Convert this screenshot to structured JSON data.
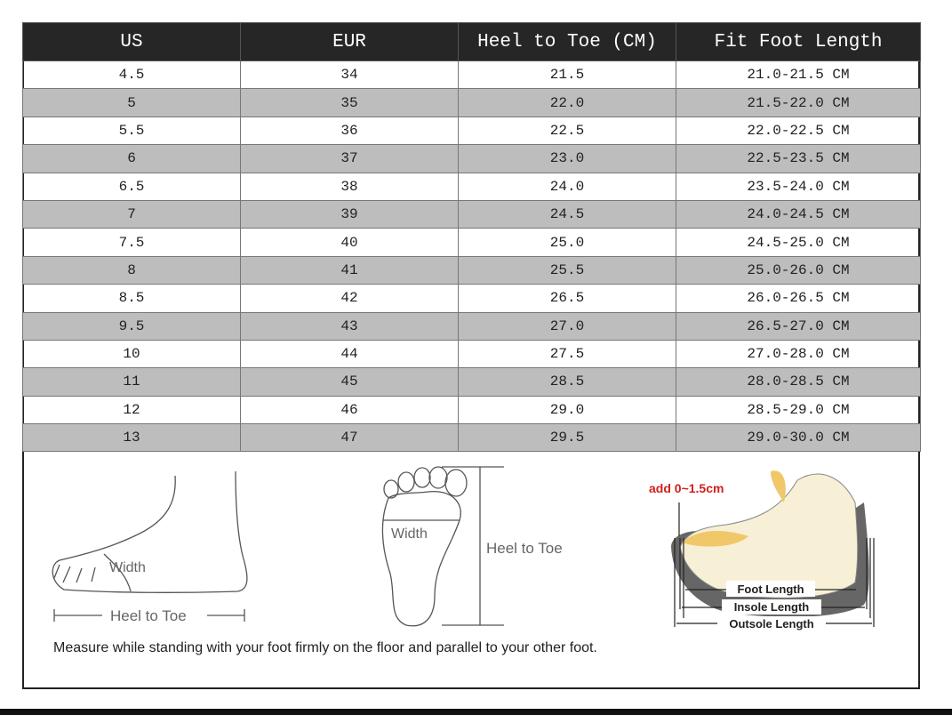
{
  "table": {
    "header": [
      "US",
      "EUR",
      "Heel to Toe (CM)",
      "Fit Foot Length"
    ],
    "rows": [
      [
        "4.5",
        "34",
        "21.5",
        "21.0-21.5 CM"
      ],
      [
        "5",
        "35",
        "22.0",
        "21.5-22.0 CM"
      ],
      [
        "5.5",
        "36",
        "22.5",
        "22.0-22.5 CM"
      ],
      [
        "6",
        "37",
        "23.0",
        "22.5-23.5 CM"
      ],
      [
        "6.5",
        "38",
        "24.0",
        "23.5-24.0 CM"
      ],
      [
        "7",
        "39",
        "24.5",
        "24.0-24.5 CM"
      ],
      [
        "7.5",
        "40",
        "25.0",
        "24.5-25.0 CM"
      ],
      [
        "8",
        "41",
        "25.5",
        "25.0-26.0 CM"
      ],
      [
        "8.5",
        "42",
        "26.5",
        "26.0-26.5 CM"
      ],
      [
        "9.5",
        "43",
        "27.0",
        "26.5-27.0 CM"
      ],
      [
        "10",
        "44",
        "27.5",
        "27.0-28.0 CM"
      ],
      [
        "11",
        "45",
        "28.5",
        "28.0-28.5 CM"
      ],
      [
        "12",
        "46",
        "29.0",
        "28.5-29.0 CM"
      ],
      [
        "13",
        "47",
        "29.5",
        "29.0-30.0 CM"
      ]
    ]
  },
  "diagrams": {
    "side": {
      "width": "Width",
      "length": "Heel to Toe"
    },
    "top": {
      "width": "Width",
      "length": "Heel to Toe"
    },
    "shoe": {
      "allowance": "add 0~1.5cm",
      "foot": "Foot Length",
      "insole": "Insole Length",
      "outsole": "Outsole Length"
    }
  },
  "caption": "Measure while standing with your foot firmly on the floor and parallel to your other foot."
}
